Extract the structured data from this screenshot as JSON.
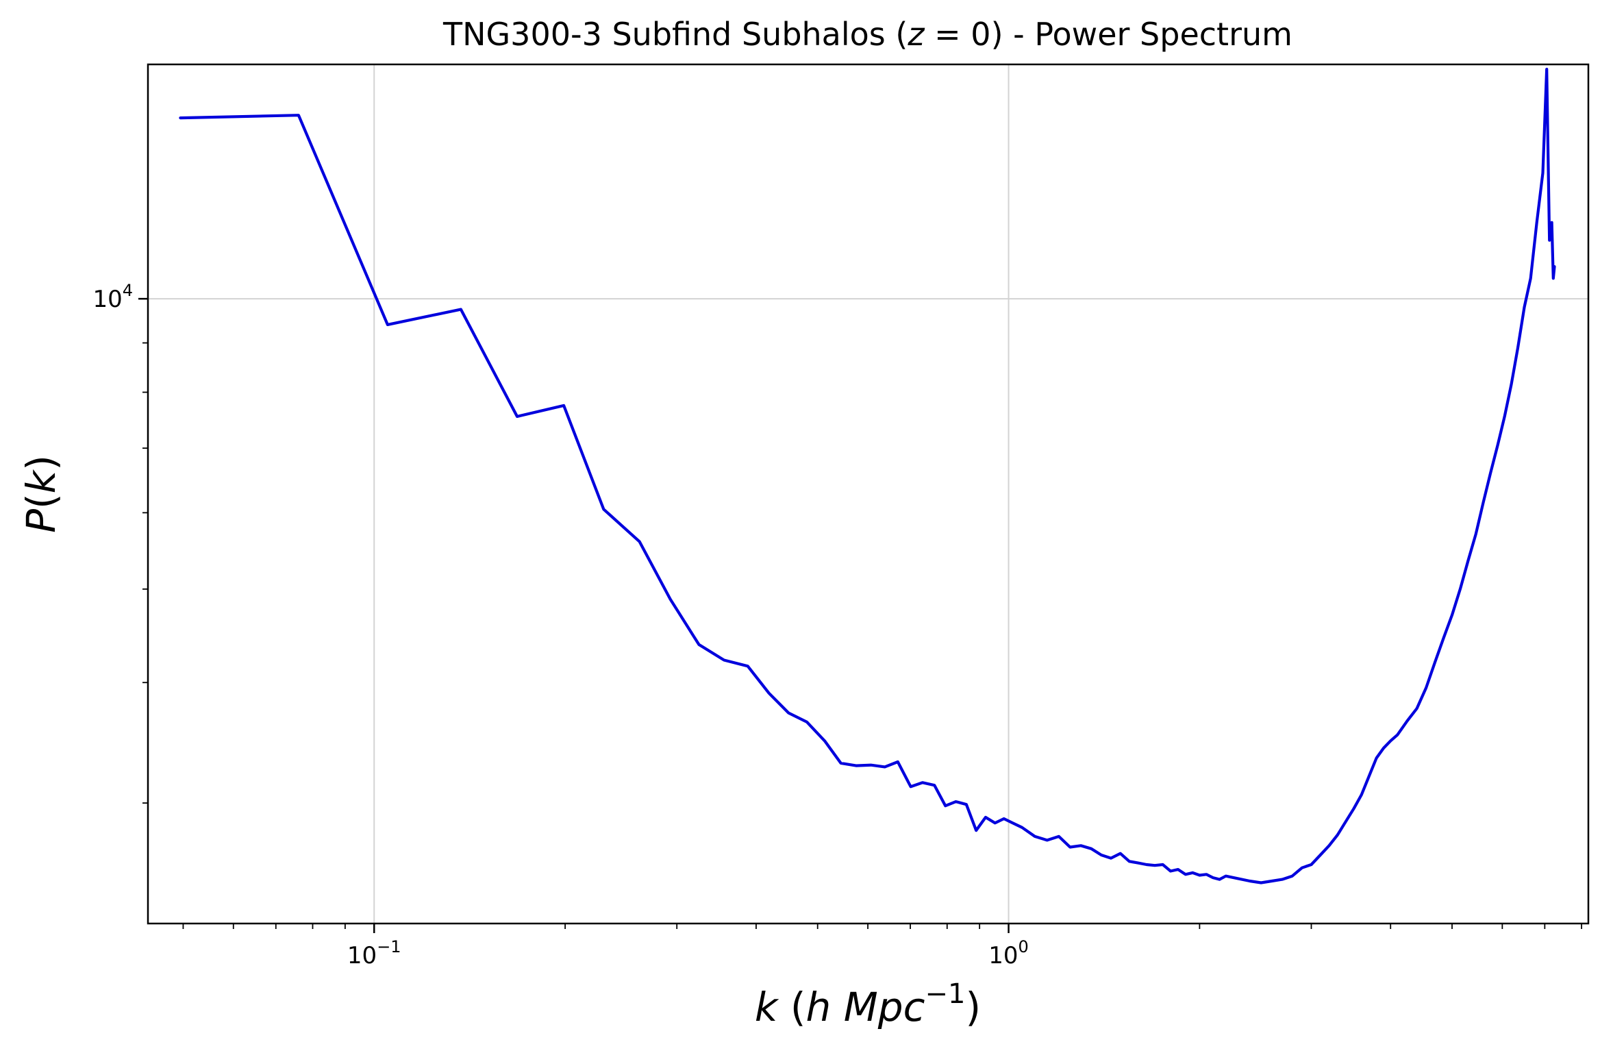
{
  "chart_data": {
    "type": "line",
    "title_parts": {
      "prefix": "TNG300-3 Subfind Subhalos (",
      "var": "z",
      "eq": " = 0",
      "suffix": ") - Power Spectrum"
    },
    "xlabel_parts": {
      "k": "k",
      "h": "h",
      "mpc": "Mpc",
      "exp": "−1"
    },
    "ylabel_parts": {
      "p": "P",
      "k": "k"
    },
    "x_scale": "log",
    "y_scale": "log",
    "xlim": [
      0.044,
      8.2
    ],
    "ylim": [
      2250,
      17500
    ],
    "grid": true,
    "line_color": "#0000dd",
    "x_ticks": [
      {
        "value": 0.1,
        "base": "10",
        "exp": "−1"
      },
      {
        "value": 1.0,
        "base": "10",
        "exp": "0"
      }
    ],
    "y_ticks": [
      {
        "value": 10000,
        "base": "10",
        "exp": "4"
      }
    ],
    "series": [
      {
        "x": [
          0.0495,
          0.076,
          0.105,
          0.137,
          0.168,
          0.199,
          0.23,
          0.262,
          0.293,
          0.325,
          0.356,
          0.388,
          0.419,
          0.45,
          0.481,
          0.513,
          0.544,
          0.575,
          0.607,
          0.638,
          0.669,
          0.701,
          0.732,
          0.764,
          0.795,
          0.826,
          0.858,
          0.889,
          0.92,
          0.952,
          0.983,
          1.015,
          1.05,
          1.1,
          1.15,
          1.2,
          1.25,
          1.3,
          1.35,
          1.4,
          1.45,
          1.5,
          1.55,
          1.6,
          1.65,
          1.7,
          1.75,
          1.8,
          1.85,
          1.9,
          1.95,
          2.0,
          2.05,
          2.1,
          2.15,
          2.2,
          2.3,
          2.4,
          2.5,
          2.6,
          2.7,
          2.8,
          2.9,
          3.0,
          3.1,
          3.2,
          3.3,
          3.4,
          3.5,
          3.6,
          3.7,
          3.8,
          3.9,
          4.0,
          4.1,
          4.25,
          4.4,
          4.55,
          4.7,
          4.85,
          5.0,
          5.15,
          5.3,
          5.45,
          5.6,
          5.75,
          5.9,
          6.05,
          6.2,
          6.35,
          6.5,
          6.65,
          6.8,
          6.95,
          7.05,
          7.12,
          7.18,
          7.22,
          7.25
        ],
        "y": [
          15400,
          15500,
          9400,
          9750,
          7550,
          7750,
          6050,
          5600,
          4880,
          4380,
          4220,
          4160,
          3900,
          3720,
          3640,
          3480,
          3300,
          3280,
          3285,
          3270,
          3310,
          3120,
          3150,
          3130,
          2980,
          3010,
          2990,
          2810,
          2900,
          2860,
          2890,
          2860,
          2830,
          2770,
          2745,
          2770,
          2700,
          2710,
          2690,
          2650,
          2630,
          2660,
          2610,
          2600,
          2590,
          2585,
          2590,
          2550,
          2560,
          2530,
          2540,
          2525,
          2530,
          2510,
          2500,
          2520,
          2505,
          2490,
          2480,
          2490,
          2500,
          2520,
          2570,
          2590,
          2650,
          2710,
          2780,
          2870,
          2960,
          3060,
          3200,
          3340,
          3420,
          3480,
          3530,
          3650,
          3760,
          3950,
          4200,
          4450,
          4700,
          5000,
          5350,
          5700,
          6150,
          6600,
          7050,
          7550,
          8150,
          8900,
          9800,
          10500,
          12000,
          13500,
          17300,
          11500,
          12000,
          10500,
          10800
        ]
      }
    ]
  }
}
